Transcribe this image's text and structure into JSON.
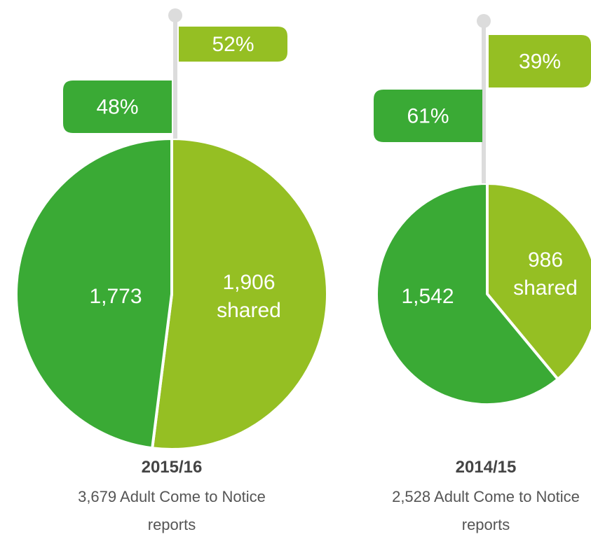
{
  "chart_data": [
    {
      "type": "pie",
      "title": "2015/16",
      "subtitle": "3,679 Adult Come to Notice reports",
      "categories": [
        "shared",
        null
      ],
      "values": [
        52,
        48
      ],
      "value_labels": [
        "52%",
        "48%"
      ],
      "counts": [
        1906,
        1773
      ],
      "count_labels": [
        "1,906",
        "1,773"
      ],
      "colors": [
        "#95bf23",
        "#3aaa35"
      ]
    },
    {
      "type": "pie",
      "title": "2014/15",
      "subtitle": "2,528 Adult Come to Notice reports",
      "categories": [
        "shared",
        null
      ],
      "values": [
        39,
        61
      ],
      "value_labels": [
        "39%",
        "61%"
      ],
      "counts": [
        986,
        1542
      ],
      "count_labels": [
        "986",
        "1,542"
      ],
      "colors": [
        "#95bf23",
        "#3aaa35"
      ]
    }
  ]
}
